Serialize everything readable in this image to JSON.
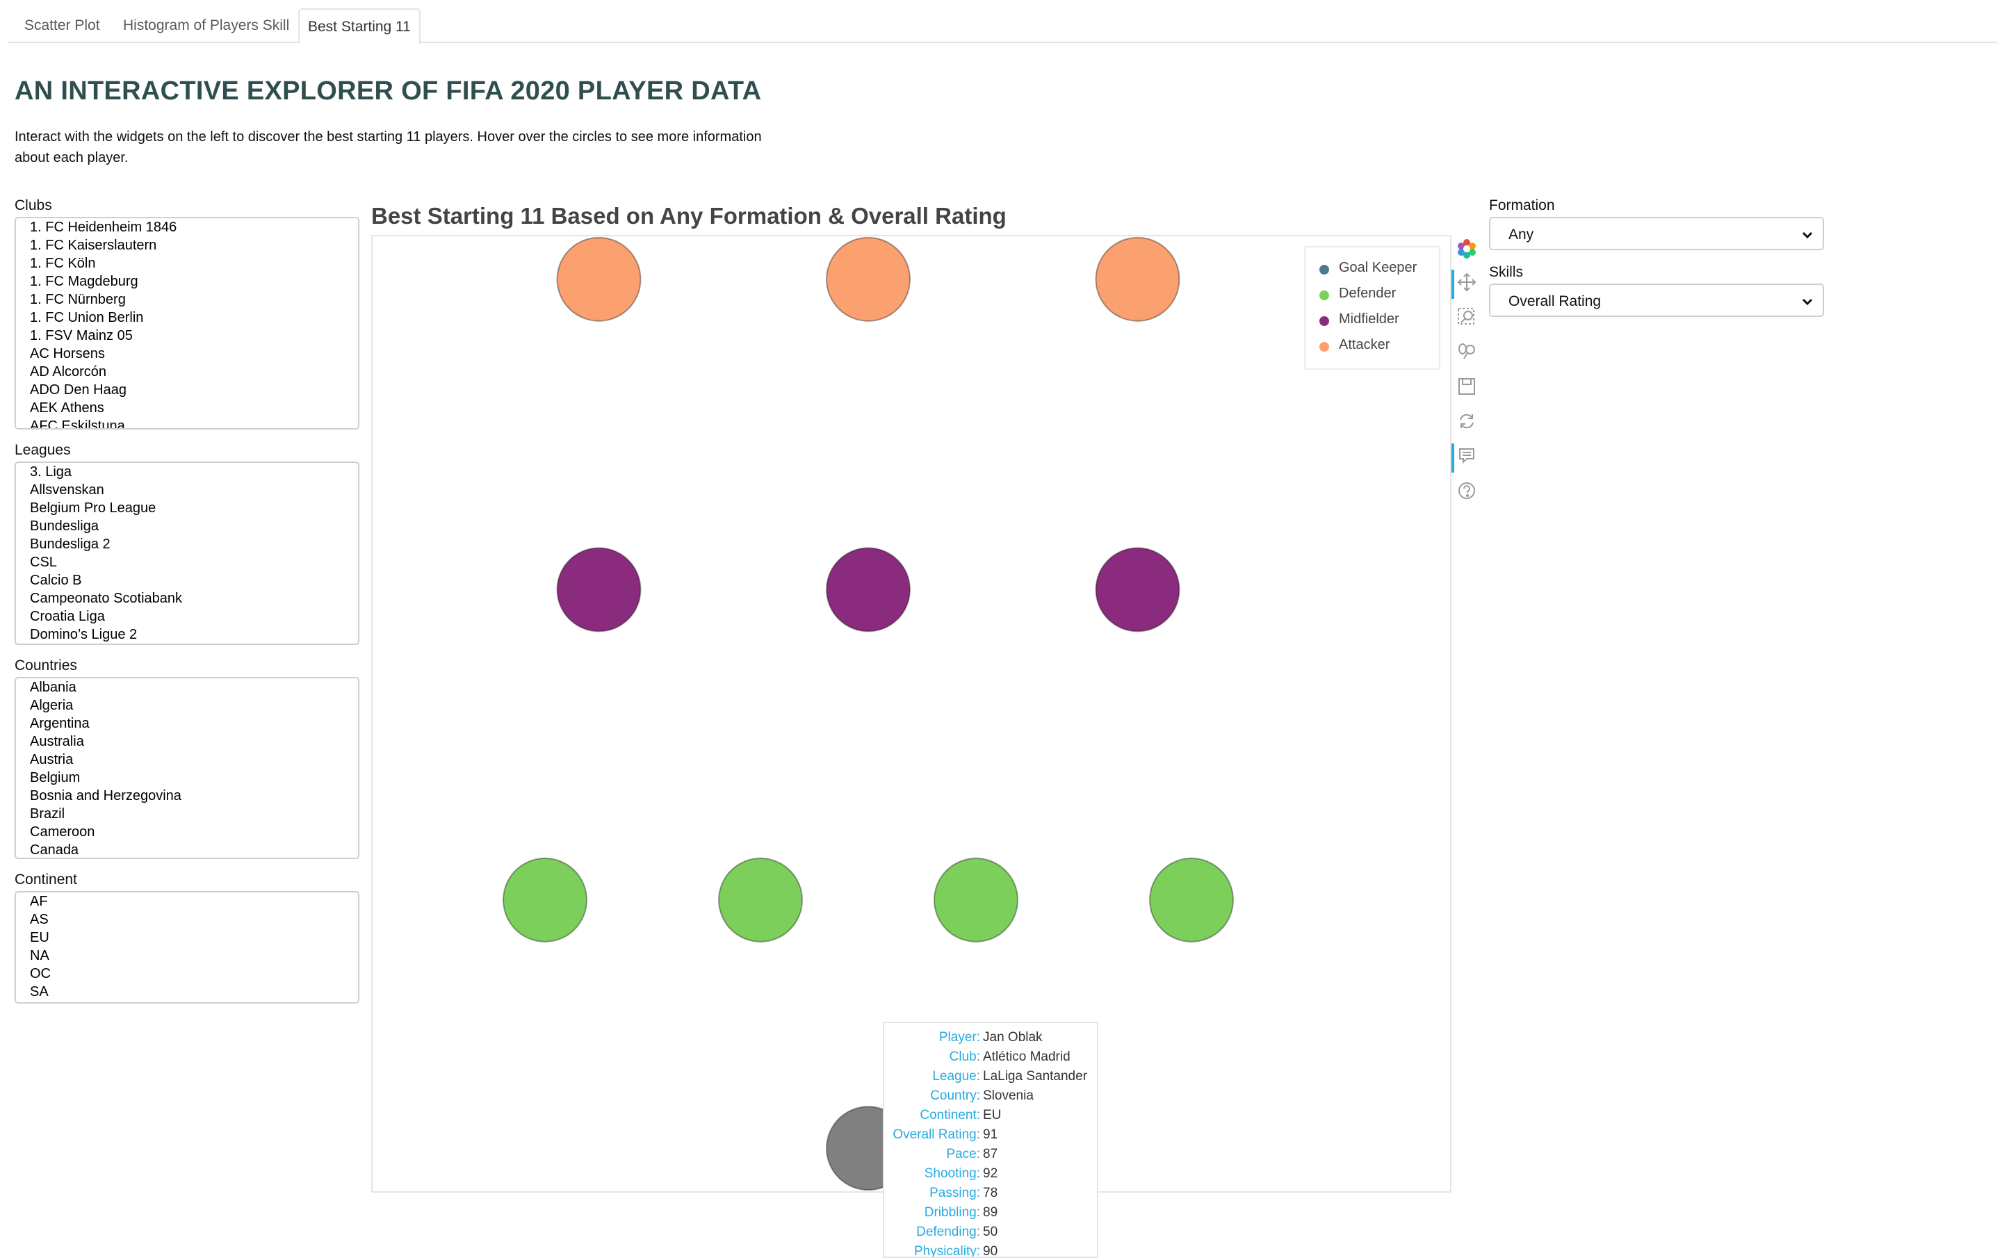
{
  "tabs": [
    {
      "label": "Scatter Plot",
      "active": false
    },
    {
      "label": "Histogram of Players Skill",
      "active": false
    },
    {
      "label": "Best Starting 11",
      "active": true
    }
  ],
  "header": {
    "title": "AN INTERACTIVE EXPLORER OF FIFA 2020 PLAYER DATA",
    "intro": "Interact with the widgets on the left to discover the best starting 11 players. Hover over the circles to see more information about each player."
  },
  "filters": {
    "clubs": {
      "label": "Clubs",
      "options": [
        "1. FC Heidenheim 1846",
        "1. FC Kaiserslautern",
        "1. FC Köln",
        "1. FC Magdeburg",
        "1. FC Nürnberg",
        "1. FC Union Berlin",
        "1. FSV Mainz 05",
        "AC Horsens",
        "AD Alcorcón",
        "ADO Den Haag",
        "AEK Athens",
        "AFC Eskilstuna"
      ]
    },
    "leagues": {
      "label": "Leagues",
      "options": [
        "3. Liga",
        "Allsvenskan",
        "Belgium Pro League",
        "Bundesliga",
        "Bundesliga 2",
        "CSL",
        "Calcio B",
        "Campeonato Scotiabank",
        "Croatia Liga",
        "Domino’s Ligue 2"
      ]
    },
    "countries": {
      "label": "Countries",
      "options": [
        "Albania",
        "Algeria",
        "Argentina",
        "Australia",
        "Austria",
        "Belgium",
        "Bosnia and Herzegovina",
        "Brazil",
        "Cameroon",
        "Canada"
      ]
    },
    "continent": {
      "label": "Continent",
      "options": [
        "AF",
        "AS",
        "EU",
        "NA",
        "OC",
        "SA"
      ]
    }
  },
  "controls": {
    "formation": {
      "label": "Formation",
      "value": "Any"
    },
    "skills": {
      "label": "Skills",
      "value": "Overall Rating"
    }
  },
  "plot": {
    "title": "Best Starting 11 Based on Any Formation & Overall Rating",
    "legend": [
      {
        "label": "Goal Keeper",
        "color": "#4a7b8c"
      },
      {
        "label": "Defender",
        "color": "#7ccf5a"
      },
      {
        "label": "Midfielder",
        "color": "#8a2b7d"
      },
      {
        "label": "Attacker",
        "color": "#fba06f"
      }
    ],
    "hover_color": "#808080",
    "toolbar": [
      "bokeh-logo-icon",
      "pan-icon",
      "box-zoom-icon",
      "wheel-zoom-icon",
      "save-icon",
      "reset-icon",
      "hover-icon",
      "help-icon"
    ]
  },
  "chart_data": {
    "type": "scatter",
    "title": "Best Starting 11 Based on Any Formation & Overall Rating",
    "xlabel": "",
    "ylabel": "",
    "x_range": [
      0,
      1
    ],
    "y_range": [
      0,
      1
    ],
    "grid": false,
    "legend_position": "top-right",
    "series": [
      {
        "name": "Attacker",
        "points": [
          {
            "x": 0.21,
            "y": 0.955
          },
          {
            "x": 0.46,
            "y": 0.955
          },
          {
            "x": 0.71,
            "y": 0.955
          }
        ]
      },
      {
        "name": "Midfielder",
        "points": [
          {
            "x": 0.21,
            "y": 0.63
          },
          {
            "x": 0.46,
            "y": 0.63
          },
          {
            "x": 0.71,
            "y": 0.63
          }
        ]
      },
      {
        "name": "Defender",
        "points": [
          {
            "x": 0.16,
            "y": 0.305
          },
          {
            "x": 0.36,
            "y": 0.305
          },
          {
            "x": 0.56,
            "y": 0.305
          },
          {
            "x": 0.76,
            "y": 0.305
          }
        ]
      },
      {
        "name": "Goal Keeper",
        "points": [
          {
            "x": 0.46,
            "y": 0.045,
            "hovered": true
          }
        ]
      }
    ]
  },
  "tooltip": [
    {
      "key": "Player:",
      "value": "Jan Oblak"
    },
    {
      "key": "Club:",
      "value": "Atlético Madrid"
    },
    {
      "key": "League:",
      "value": "LaLiga Santander"
    },
    {
      "key": "Country:",
      "value": "Slovenia"
    },
    {
      "key": "Continent:",
      "value": "EU"
    },
    {
      "key": "Overall Rating:",
      "value": "91"
    },
    {
      "key": "Pace:",
      "value": "87"
    },
    {
      "key": "Shooting:",
      "value": "92"
    },
    {
      "key": "Passing:",
      "value": "78"
    },
    {
      "key": "Dribbling:",
      "value": "89"
    },
    {
      "key": "Defending:",
      "value": "50"
    },
    {
      "key": "Physicality:",
      "value": "90"
    }
  ]
}
